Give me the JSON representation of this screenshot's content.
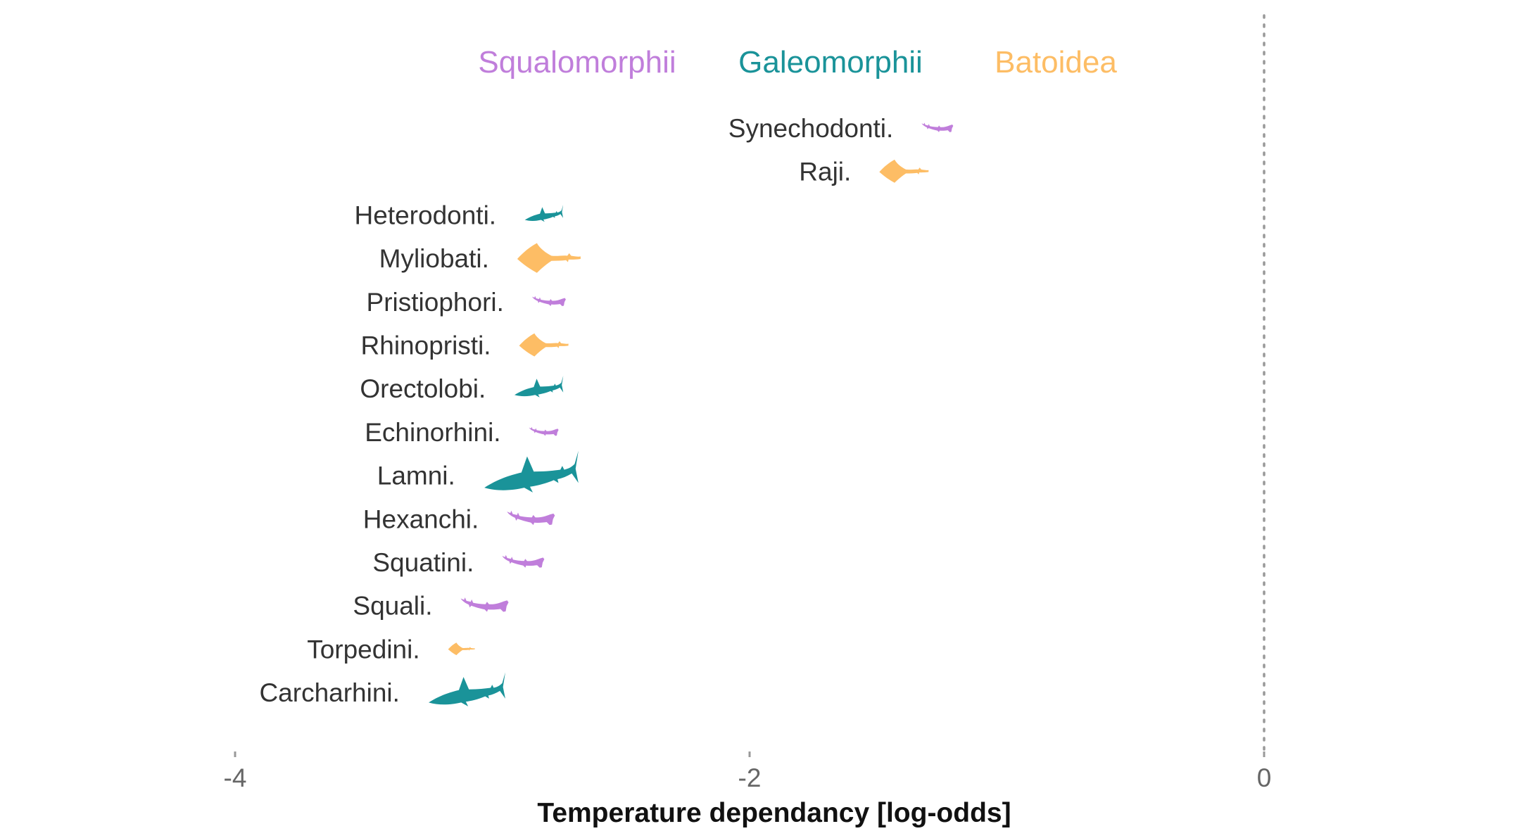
{
  "chart_data": {
    "type": "scatter",
    "xlabel": "Temperature dependancy [log-odds]",
    "ylabel": "",
    "xlim": [
      -4,
      0
    ],
    "xticks": [
      {
        "value": -4,
        "label": "-4"
      },
      {
        "value": -2,
        "label": "-2"
      },
      {
        "value": 0,
        "label": "0"
      }
    ],
    "reference_line": {
      "x": 0,
      "style": "dotted"
    },
    "grid": false,
    "legend": {
      "placement": "top",
      "entries": [
        {
          "name": "Squalomorphii",
          "color": "#C07EDB"
        },
        {
          "name": "Galeomorphii",
          "color": "#1A9399"
        },
        {
          "name": "Batoidea",
          "color": "#FDBD65"
        }
      ]
    },
    "points": [
      {
        "order": "Synechodonti.",
        "group": "Squalomorphii",
        "x": -1.27,
        "size": 0.45,
        "icon": "dogfish-silhouette-icon"
      },
      {
        "order": "Raji.",
        "group": "Batoidea",
        "x": -1.4,
        "size": 0.7,
        "icon": "ray-silhouette-icon"
      },
      {
        "order": "Heterodonti.",
        "group": "Galeomorphii",
        "x": -2.8,
        "size": 0.55,
        "icon": "shark-silhouette-icon"
      },
      {
        "order": "Myliobati.",
        "group": "Batoidea",
        "x": -2.78,
        "size": 0.9,
        "icon": "ray-silhouette-icon"
      },
      {
        "order": "Pristiophori.",
        "group": "Squalomorphii",
        "x": -2.78,
        "size": 0.48,
        "icon": "dogfish-silhouette-icon"
      },
      {
        "order": "Rhinopristi.",
        "group": "Batoidea",
        "x": -2.8,
        "size": 0.7,
        "icon": "ray-silhouette-icon"
      },
      {
        "order": "Orectolobi.",
        "group": "Galeomorphii",
        "x": -2.82,
        "size": 0.7,
        "icon": "shark-silhouette-icon"
      },
      {
        "order": "Echinorhini.",
        "group": "Squalomorphii",
        "x": -2.8,
        "size": 0.42,
        "icon": "dogfish-silhouette-icon"
      },
      {
        "order": "Lamni.",
        "group": "Galeomorphii",
        "x": -2.85,
        "size": 1.35,
        "icon": "shark-silhouette-icon"
      },
      {
        "order": "Hexanchi.",
        "group": "Squalomorphii",
        "x": -2.85,
        "size": 0.68,
        "icon": "dogfish-silhouette-icon"
      },
      {
        "order": "Squatini.",
        "group": "Squalomorphii",
        "x": -2.88,
        "size": 0.6,
        "icon": "dogfish-silhouette-icon"
      },
      {
        "order": "Squali.",
        "group": "Squalomorphii",
        "x": -3.03,
        "size": 0.68,
        "icon": "dogfish-silhouette-icon"
      },
      {
        "order": "Torpedini.",
        "group": "Batoidea",
        "x": -3.12,
        "size": 0.38,
        "icon": "ray-silhouette-icon"
      },
      {
        "order": "Carcharhini.",
        "group": "Galeomorphii",
        "x": -3.1,
        "size": 1.1,
        "icon": "shark-silhouette-icon"
      }
    ]
  }
}
